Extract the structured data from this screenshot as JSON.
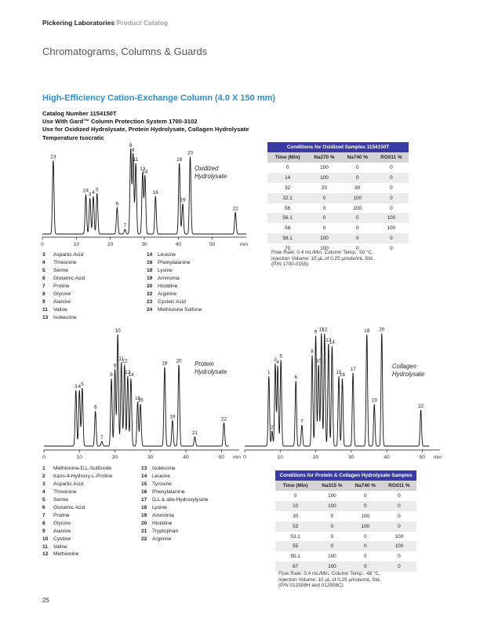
{
  "header": {
    "brand": "Pickering Laboratories",
    "catalog": "Product Catalog"
  },
  "section_title": "Chromatograms, Columns & Guards",
  "column": {
    "title": "High-Efficiency Cation-Exchange Column (4.0 X 150 mm)",
    "lines": [
      "Catalog Number 1154150T",
      "Use With Gard™ Column Protection System 1700-3102",
      "Use for Oxidized Hydrolysate, Protein Hydrolysate, Collagen Hydrolysate",
      "Temperature Isocratic"
    ]
  },
  "chart_data": [
    {
      "type": "line",
      "title": "Oxidized Hydrolysate",
      "xlabel": "min",
      "xlim": [
        0,
        60
      ],
      "xticks": [
        0,
        10,
        20,
        30,
        40,
        50
      ],
      "ylim": [
        0,
        100
      ],
      "peaks": [
        {
          "label": "23",
          "x": 3.2,
          "y": 78
        },
        {
          "label": "24",
          "x": 12.8,
          "y": 42
        },
        {
          "label": "3",
          "x": 14.0,
          "y": 38
        },
        {
          "label": "4",
          "x": 15.0,
          "y": 40
        },
        {
          "label": "5",
          "x": 16.1,
          "y": 43
        },
        {
          "label": "6",
          "x": 22.0,
          "y": 28
        },
        {
          "label": "7",
          "x": 24.3,
          "y": 5
        },
        {
          "label": "8",
          "x": 26.0,
          "y": 90
        },
        {
          "label": "9",
          "x": 26.7,
          "y": 85
        },
        {
          "label": "11",
          "x": 27.5,
          "y": 75
        },
        {
          "label": "13",
          "x": 29.5,
          "y": 65
        },
        {
          "label": "14",
          "x": 30.2,
          "y": 62
        },
        {
          "label": "16",
          "x": 33.3,
          "y": 40
        },
        {
          "label": "18",
          "x": 40.3,
          "y": 75
        },
        {
          "label": "19",
          "x": 41.3,
          "y": 32
        },
        {
          "label": "20",
          "x": 43.5,
          "y": 82
        },
        {
          "label": "22",
          "x": 56.8,
          "y": 23
        }
      ]
    },
    {
      "type": "line",
      "title": "Protein Hydrolysate",
      "xlabel": "min",
      "xlim": [
        0,
        55
      ],
      "xticks": [
        0,
        10,
        20,
        30,
        40,
        50
      ],
      "ylim": [
        0,
        100
      ],
      "peaks": [
        {
          "label": "3",
          "x": 9.0,
          "y": 48
        },
        {
          "label": "4",
          "x": 10.0,
          "y": 48
        },
        {
          "label": "5",
          "x": 10.8,
          "y": 50
        },
        {
          "label": "6",
          "x": 14.5,
          "y": 30
        },
        {
          "label": "7",
          "x": 16.3,
          "y": 4
        },
        {
          "label": "8",
          "x": 19.0,
          "y": 58
        },
        {
          "label": "9",
          "x": 20.0,
          "y": 66
        },
        {
          "label": "10",
          "x": 20.8,
          "y": 96
        },
        {
          "label": "11",
          "x": 21.8,
          "y": 72
        },
        {
          "label": "12",
          "x": 22.7,
          "y": 70
        },
        {
          "label": "13",
          "x": 23.6,
          "y": 60
        },
        {
          "label": "14",
          "x": 24.5,
          "y": 58
        },
        {
          "label": "15",
          "x": 26.4,
          "y": 38
        },
        {
          "label": "16",
          "x": 27.2,
          "y": 36
        },
        {
          "label": "18",
          "x": 34.0,
          "y": 68
        },
        {
          "label": "19",
          "x": 36.2,
          "y": 22
        },
        {
          "label": "20",
          "x": 38.0,
          "y": 70
        },
        {
          "label": "21",
          "x": 42.5,
          "y": 8
        },
        {
          "label": "22",
          "x": 50.7,
          "y": 20
        }
      ]
    },
    {
      "type": "line",
      "title": "Collagen Hydrolysate",
      "xlabel": "min",
      "xlim": [
        0,
        55
      ],
      "xticks": [
        0,
        10,
        20,
        30,
        40,
        50
      ],
      "ylim": [
        0,
        100
      ],
      "peaks": [
        {
          "label": "1",
          "x": 6.8,
          "y": 60
        },
        {
          "label": "2",
          "x": 7.7,
          "y": 13
        },
        {
          "label": "3",
          "x": 8.6,
          "y": 71
        },
        {
          "label": "4",
          "x": 9.3,
          "y": 69
        },
        {
          "label": "5",
          "x": 10.2,
          "y": 74
        },
        {
          "label": "6",
          "x": 14.4,
          "y": 56
        },
        {
          "label": "7",
          "x": 16.1,
          "y": 18
        },
        {
          "label": "8",
          "x": 19.0,
          "y": 78
        },
        {
          "label": "9",
          "x": 20.0,
          "y": 95
        },
        {
          "label": "10",
          "x": 20.8,
          "y": 70
        },
        {
          "label": "11",
          "x": 21.6,
          "y": 97
        },
        {
          "label": "12",
          "x": 22.5,
          "y": 97
        },
        {
          "label": "13",
          "x": 23.6,
          "y": 88
        },
        {
          "label": "14",
          "x": 24.6,
          "y": 86
        },
        {
          "label": "15",
          "x": 26.5,
          "y": 60
        },
        {
          "label": "16",
          "x": 27.5,
          "y": 58
        },
        {
          "label": "17",
          "x": 30.5,
          "y": 63
        },
        {
          "label": "18",
          "x": 34.4,
          "y": 96
        },
        {
          "label": "19",
          "x": 36.5,
          "y": 36
        },
        {
          "label": "20",
          "x": 38.6,
          "y": 97
        },
        {
          "label": "22",
          "x": 49.6,
          "y": 31
        }
      ]
    }
  ],
  "legend_oxidized": {
    "left": [
      {
        "num": "3",
        "name": "Aspartic Acid"
      },
      {
        "num": "4",
        "name": "Threonine"
      },
      {
        "num": "5",
        "name": "Serine"
      },
      {
        "num": "6",
        "name": "Glutamic Acid"
      },
      {
        "num": "7",
        "name": "Proline"
      },
      {
        "num": "8",
        "name": "Glycine"
      },
      {
        "num": "9",
        "name": "Alanine"
      },
      {
        "num": "11",
        "name": "Valine"
      },
      {
        "num": "13",
        "name": "Isoleucine"
      }
    ],
    "right": [
      {
        "num": "14",
        "name": "Leucine"
      },
      {
        "num": "16",
        "name": "Phenylalanine"
      },
      {
        "num": "18",
        "name": "Lysine"
      },
      {
        "num": "19",
        "name": "Ammonia"
      },
      {
        "num": "20",
        "name": "Histidine"
      },
      {
        "num": "22",
        "name": "Arginine"
      },
      {
        "num": "23",
        "name": "Cysteic Acid"
      },
      {
        "num": "24",
        "name": "Methionine Sulfone"
      }
    ]
  },
  "legend_protein": {
    "left": [
      {
        "num": "1",
        "name": "Methionine-D,L-Sulfoxide"
      },
      {
        "num": "2",
        "name": "trans-4-Hydroxy-L-Proline"
      },
      {
        "num": "3",
        "name": "Aspartic Acid"
      },
      {
        "num": "4",
        "name": "Threonine"
      },
      {
        "num": "5",
        "name": "Serine"
      },
      {
        "num": "6",
        "name": "Glutamic Acid"
      },
      {
        "num": "7",
        "name": "Proline"
      },
      {
        "num": "8",
        "name": "Glycine"
      },
      {
        "num": "9",
        "name": "Alanine"
      },
      {
        "num": "10",
        "name": "Cystine"
      },
      {
        "num": "11",
        "name": "Valine"
      },
      {
        "num": "12",
        "name": "Methionine"
      }
    ],
    "right": [
      {
        "num": "13",
        "name": "Isoleucine"
      },
      {
        "num": "14",
        "name": "Leucine"
      },
      {
        "num": "15",
        "name": "Tyrosine"
      },
      {
        "num": "16",
        "name": "Phenylalanine"
      },
      {
        "num": "17",
        "name": "D,L & allo-Hydroxylysine"
      },
      {
        "num": "18",
        "name": "Lysine"
      },
      {
        "num": "19",
        "name": "Ammonia"
      },
      {
        "num": "20",
        "name": "Histidine"
      },
      {
        "num": "21",
        "name": "Tryptophan"
      },
      {
        "num": "22",
        "name": "Arginine"
      }
    ]
  },
  "table_oxidized": {
    "caption": "Conditions for Oxidized Samples 1154150T",
    "headers": [
      "Time (Min)",
      "Na270 %",
      "Na740 %",
      "RG011 %"
    ],
    "rows": [
      [
        "0",
        "100",
        "0",
        "0"
      ],
      [
        "14",
        "100",
        "0",
        "0"
      ],
      [
        "32",
        "20",
        "80",
        "0"
      ],
      [
        "32.1",
        "0",
        "100",
        "0"
      ],
      [
        "56",
        "0",
        "100",
        "0"
      ],
      [
        "56.1",
        "0",
        "0",
        "100"
      ],
      [
        "58",
        "0",
        "0",
        "100"
      ],
      [
        "58.1",
        "100",
        "0",
        "0"
      ],
      [
        "70",
        "100",
        "0",
        "0"
      ]
    ],
    "notes": [
      "Flow Rate: 0.4 mL/Min, Column Temp.: 50 °C,",
      "Injection Volume: 10 µL of 0.25 µmole/mL Std.",
      "(P/N 1700-0155)"
    ]
  },
  "table_protein": {
    "caption": "Conditions for Protein & Collagen Hydrolysate Samples",
    "headers": [
      "Time (Min)",
      "Na315 %",
      "Na740 %",
      "RG011 %"
    ],
    "rows": [
      [
        "0",
        "100",
        "0",
        "0"
      ],
      [
        "10",
        "100",
        "0",
        "0"
      ],
      [
        "30",
        "0",
        "100",
        "0"
      ],
      [
        "53",
        "0",
        "100",
        "0"
      ],
      [
        "53.1",
        "0",
        "0",
        "100"
      ],
      [
        "55",
        "0",
        "0",
        "100"
      ],
      [
        "55.1",
        "100",
        "0",
        "0"
      ],
      [
        "67",
        "100",
        "0",
        "0"
      ]
    ],
    "notes": [
      "Flow Rate: 0.4 mL/Min, Column Temp.: 48 °C,",
      "Injection Volume: 10 µL of 0.25 µmole/mL Std.",
      "(P/N 012506H and 012506C)"
    ]
  },
  "page_number": "25"
}
